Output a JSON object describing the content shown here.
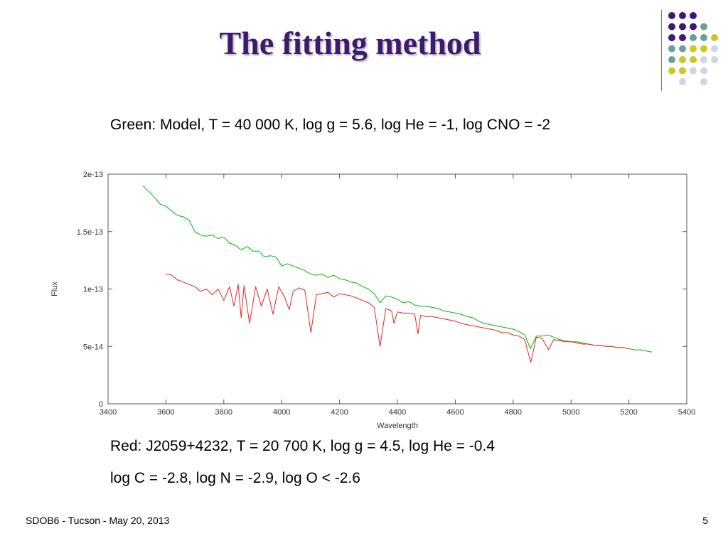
{
  "slide": {
    "title": "The fitting method",
    "caption_top": "Green: Model, T = 40 000 K, log g = 5.6, log He = -1, log CNO = -2",
    "caption_red_line1": "Red: J2059+4232, T = 20 700 K, log g = 4.5, log He = -0.4",
    "caption_red_line2": "log C = -2.8, log N = -2.9, log O < -2.6",
    "footer_left": "SDOB6 - Tucson - May 20, 2013",
    "page_number": "5",
    "decor_colors": [
      "#3d1a6e",
      "#6b9e9e",
      "#c8c826",
      "#d3d3e3"
    ]
  },
  "chart_data": {
    "type": "line",
    "xlabel": "Wavelength",
    "ylabel": "Flux",
    "xlim": [
      3400,
      5400
    ],
    "ylim": [
      0,
      2e-13
    ],
    "xticks": [
      3400,
      3600,
      3800,
      4000,
      4200,
      4400,
      4600,
      4800,
      5000,
      5200,
      5400
    ],
    "xtick_labels": [
      "3400",
      "3600",
      "3800",
      "4000",
      "4200",
      "4400",
      "4600",
      "4800",
      "5000",
      "5200",
      "5400"
    ],
    "yticks": [
      0,
      5e-14,
      1e-13,
      1.5e-13,
      2e-13
    ],
    "ytick_labels": [
      "0",
      "5e-14",
      "1e-13",
      "1.5e-13",
      "2e-13"
    ],
    "grid": false,
    "series": [
      {
        "color": "#00bb00",
        "x": [
          3520,
          3540,
          3560,
          3580,
          3600,
          3620,
          3640,
          3660,
          3680,
          3700,
          3720,
          3740,
          3760,
          3780,
          3800,
          3820,
          3840,
          3860,
          3880,
          3900,
          3920,
          3940,
          3960,
          3980,
          4000,
          4020,
          4040,
          4060,
          4080,
          4100,
          4120,
          4140,
          4160,
          4180,
          4200,
          4220,
          4240,
          4260,
          4280,
          4300,
          4320,
          4340,
          4360,
          4380,
          4400,
          4420,
          4440,
          4460,
          4480,
          4500,
          4520,
          4540,
          4560,
          4580,
          4600,
          4620,
          4640,
          4660,
          4680,
          4700,
          4720,
          4740,
          4760,
          4780,
          4800,
          4820,
          4840,
          4860,
          4880,
          4900,
          4920,
          4940,
          4960,
          4980,
          5000,
          5020,
          5040,
          5060,
          5080,
          5100,
          5120,
          5140,
          5160,
          5180,
          5200,
          5220,
          5240,
          5260,
          5280
        ],
        "y": [
          1.9e-13,
          1.85e-13,
          1.8e-13,
          1.74e-13,
          1.72e-13,
          1.68e-13,
          1.64e-13,
          1.63e-13,
          1.6e-13,
          1.5e-13,
          1.47e-13,
          1.46e-13,
          1.47e-13,
          1.44e-13,
          1.45e-13,
          1.4e-13,
          1.38e-13,
          1.34e-13,
          1.37e-13,
          1.33e-13,
          1.33e-13,
          1.28e-13,
          1.29e-13,
          1.28e-13,
          1.2e-13,
          1.22e-13,
          1.2e-13,
          1.18e-13,
          1.16e-13,
          1.13e-13,
          1.12e-13,
          1.13e-13,
          1.1e-13,
          1.12e-13,
          1.09e-13,
          1.08e-13,
          1.06e-13,
          1.05e-13,
          1.02e-13,
          1e-13,
          9.6e-14,
          8.8e-14,
          9.4e-14,
          9.3e-14,
          9.1e-14,
          8.8e-14,
          8.9e-14,
          8.6e-14,
          8.5e-14,
          8.5e-14,
          8.4e-14,
          8.3e-14,
          8.1e-14,
          8e-14,
          7.9e-14,
          7.8e-14,
          7.6e-14,
          7.5e-14,
          7.2e-14,
          7e-14,
          6.9e-14,
          6.8e-14,
          6.7e-14,
          6.6e-14,
          6.5e-14,
          6.3e-14,
          6e-14,
          4.8e-14,
          5.9e-14,
          5.9e-14,
          6e-14,
          5.8e-14,
          5.6e-14,
          5.5e-14,
          5.4e-14,
          5.4e-14,
          5.3e-14,
          5.2e-14,
          5.1e-14,
          5.1e-14,
          5e-14,
          5e-14,
          4.9e-14,
          4.9e-14,
          4.8e-14,
          4.7e-14,
          4.7e-14,
          4.6e-14,
          4.5e-14
        ]
      },
      {
        "color": "#ee2222",
        "x": [
          3600,
          3620,
          3640,
          3660,
          3680,
          3700,
          3720,
          3740,
          3760,
          3780,
          3800,
          3820,
          3835,
          3850,
          3860,
          3870,
          3889,
          3910,
          3930,
          3950,
          3970,
          3990,
          4010,
          4026,
          4040,
          4060,
          4080,
          4101,
          4120,
          4140,
          4160,
          4180,
          4200,
          4220,
          4240,
          4260,
          4280,
          4300,
          4320,
          4340,
          4360,
          4380,
          4388,
          4400,
          4420,
          4440,
          4460,
          4471,
          4480,
          4500,
          4520,
          4540,
          4560,
          4580,
          4600,
          4620,
          4640,
          4660,
          4680,
          4700,
          4720,
          4740,
          4760,
          4780,
          4800,
          4820,
          4840,
          4861,
          4880,
          4900,
          4922,
          4940,
          4960,
          4980,
          5000,
          5020,
          5040,
          5060,
          5080,
          5100,
          5120,
          5140,
          5160,
          5180,
          5200
        ],
        "y": [
          1.13e-13,
          1.12e-13,
          1.08e-13,
          1.06e-13,
          1.04e-13,
          1.02e-13,
          9.8e-14,
          1e-13,
          9.5e-14,
          1e-13,
          9e-14,
          1.02e-13,
          8.5e-14,
          1.04e-13,
          7.5e-14,
          1.03e-13,
          7e-14,
          1.02e-13,
          8.5e-14,
          1e-13,
          7.8e-14,
          1.02e-13,
          9.3e-14,
          8.2e-14,
          9.8e-14,
          1.01e-13,
          9.9e-14,
          6.2e-14,
          9.5e-14,
          9.6e-14,
          9.7e-14,
          9.3e-14,
          9.6e-14,
          9.5e-14,
          9.4e-14,
          9.2e-14,
          9e-14,
          8.8e-14,
          8.4e-14,
          5e-14,
          8.3e-14,
          8.1e-14,
          7e-14,
          8e-14,
          7.9e-14,
          7.9e-14,
          7.8e-14,
          6.1e-14,
          7.7e-14,
          7.6e-14,
          7.6e-14,
          7.5e-14,
          7.4e-14,
          7.3e-14,
          7.2e-14,
          7e-14,
          6.9e-14,
          6.8e-14,
          6.7e-14,
          6.6e-14,
          6.5e-14,
          6.4e-14,
          6.2e-14,
          6.2e-14,
          6e-14,
          5.9e-14,
          5.6e-14,
          3.6e-14,
          5.8e-14,
          5.7e-14,
          4.7e-14,
          5.6e-14,
          5.5e-14,
          5.4e-14,
          5.4e-14,
          5.3e-14,
          5.2e-14,
          5.2e-14,
          5.1e-14,
          5.1e-14,
          5e-14,
          5e-14,
          4.9e-14,
          4.9e-14,
          4.8e-14
        ]
      }
    ]
  }
}
